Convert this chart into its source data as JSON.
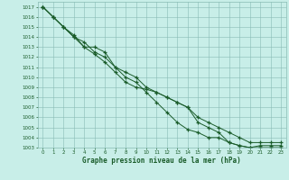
{
  "title": "Graphe pression niveau de la mer (hPa)",
  "background_color": "#c8eee8",
  "grid_color": "#88bbb4",
  "line_color": "#1a5c2a",
  "xlim": [
    -0.5,
    23.5
  ],
  "ylim": [
    1003,
    1017.5
  ],
  "xtick_labels": [
    "0",
    "1",
    "2",
    "3",
    "4",
    "5",
    "6",
    "7",
    "8",
    "9",
    "10",
    "11",
    "12",
    "13",
    "14",
    "15",
    "16",
    "17",
    "18",
    "19",
    "20",
    "21",
    "22",
    "23"
  ],
  "ytick_labels": [
    "1003",
    "1004",
    "1005",
    "1006",
    "1007",
    "1008",
    "1009",
    "1010",
    "1011",
    "1012",
    "1013",
    "1014",
    "1015",
    "1016",
    "1017"
  ],
  "series": [
    [
      1017.0,
      1016.0,
      1015.0,
      1014.0,
      1013.0,
      1013.0,
      1012.5,
      1011.0,
      1010.5,
      1010.0,
      1009.0,
      1008.5,
      1008.0,
      1007.5,
      1007.0,
      1006.0,
      1005.5,
      1005.0,
      1004.5,
      1004.0,
      1003.5,
      1003.5,
      1003.5,
      1003.5
    ],
    [
      1017.0,
      1016.0,
      1015.0,
      1014.0,
      1013.5,
      1012.5,
      1012.0,
      1011.0,
      1010.0,
      1009.5,
      1008.5,
      1007.5,
      1006.5,
      1005.5,
      1004.8,
      1004.5,
      1004.0,
      1004.0,
      1003.5,
      1003.2,
      1003.0,
      1003.0,
      1003.0,
      1003.0
    ],
    [
      1017.0,
      1016.0,
      1015.0,
      1014.2,
      1013.0,
      1012.3,
      1011.5,
      1010.5,
      1009.5,
      1009.0,
      1008.8,
      1008.5,
      1008.0,
      1007.5,
      1007.0,
      1005.5,
      1005.0,
      1004.5,
      1003.5,
      1003.2,
      1003.0,
      1003.2,
      1003.2,
      1003.2
    ]
  ]
}
